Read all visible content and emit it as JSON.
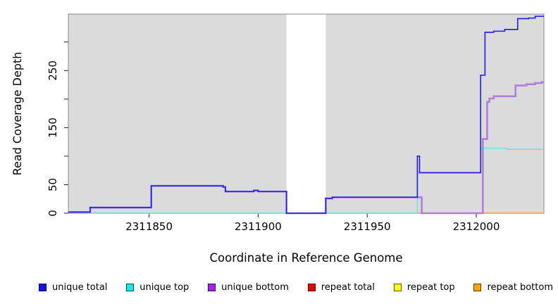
{
  "chart_data": {
    "type": "line",
    "subtype": "step-coverage",
    "title": "",
    "xlabel": "Coordinate in Reference Genome",
    "ylabel": "Read Coverage Depth",
    "xlim": [
      2311813,
      2312031
    ],
    "ylim": [
      0,
      349
    ],
    "grid": false,
    "plot_bg": "#DBDBDB",
    "box_color": "#8a8a8a",
    "x_ticks": [
      {
        "value": 2311850,
        "label": "2311850"
      },
      {
        "value": 2311900,
        "label": "2311900"
      },
      {
        "value": 2311950,
        "label": "2311950"
      },
      {
        "value": 2312000,
        "label": "2312000"
      }
    ],
    "y_ticks": [
      {
        "value": 0,
        "label": "0"
      },
      {
        "value": 50,
        "label": "50"
      },
      {
        "value": 100,
        "label": ""
      },
      {
        "value": 150,
        "label": "150"
      },
      {
        "value": 200,
        "label": ""
      },
      {
        "value": 250,
        "label": "250"
      },
      {
        "value": 300,
        "label": ""
      }
    ],
    "masked_region": {
      "x1": 2311913,
      "x2": 2311931,
      "color": "#FFFFFF"
    },
    "series": [
      {
        "name": "unique total",
        "color": "#2626EE",
        "width": 1.7,
        "draw": true,
        "points": [
          [
            2311813,
            2
          ],
          [
            2311823,
            10
          ],
          [
            2311851,
            48
          ],
          [
            2311884,
            46
          ],
          [
            2311885,
            38
          ],
          [
            2311898,
            40
          ],
          [
            2311900,
            38
          ],
          [
            2311913,
            0
          ],
          [
            2311931,
            26
          ],
          [
            2311934,
            28
          ],
          [
            2311973,
            100
          ],
          [
            2311974,
            71
          ],
          [
            2312002,
            242
          ],
          [
            2312004,
            317
          ],
          [
            2312008,
            319
          ],
          [
            2312013,
            322
          ],
          [
            2312019,
            341
          ],
          [
            2312024,
            342
          ],
          [
            2312027,
            345
          ],
          [
            2312031,
            345
          ]
        ]
      },
      {
        "name": "unique top",
        "color": "#5CE4E8",
        "width": 1.4,
        "draw": true,
        "points": [
          [
            2311813,
            0
          ],
          [
            2311973,
            70
          ],
          [
            2312002,
            114
          ],
          [
            2312014,
            112
          ],
          [
            2312031,
            112
          ]
        ]
      },
      {
        "name": "unique bottom",
        "color": "#B27EDE",
        "width": 2.6,
        "draw": true,
        "points": [
          [
            2311813,
            2
          ],
          [
            2311823,
            10
          ],
          [
            2311851,
            48
          ],
          [
            2311884,
            46
          ],
          [
            2311885,
            38
          ],
          [
            2311898,
            40
          ],
          [
            2311900,
            38
          ],
          [
            2311913,
            0
          ],
          [
            2311931,
            26
          ],
          [
            2311934,
            28
          ],
          [
            2311975,
            0
          ],
          [
            2312003,
            130
          ],
          [
            2312005,
            195
          ],
          [
            2312006,
            201
          ],
          [
            2312008,
            205
          ],
          [
            2312018,
            224
          ],
          [
            2312023,
            226
          ],
          [
            2312027,
            228
          ],
          [
            2312030,
            230
          ],
          [
            2312031,
            230
          ]
        ]
      },
      {
        "name": "repeat total",
        "color": "#D0527A",
        "width": 1.4,
        "draw": false,
        "points": [
          [
            2311813,
            0
          ],
          [
            2312031,
            0
          ]
        ]
      },
      {
        "name": "repeat top",
        "color": "#FFFF00",
        "width": 1.4,
        "draw": false,
        "points": [
          [
            2311813,
            0
          ],
          [
            2312031,
            0
          ]
        ]
      },
      {
        "name": "repeat bottom",
        "color": "#FF9B26",
        "width": 1.4,
        "draw": false,
        "points": [
          [
            2311813,
            0
          ],
          [
            2312031,
            0
          ]
        ]
      }
    ],
    "baseline_segments": [
      {
        "x1": 2311813,
        "x2": 2311973,
        "color": "#8FD98F"
      },
      {
        "x1": 2311973,
        "x2": 2311975,
        "color": "#FF9B26"
      },
      {
        "x1": 2311975,
        "x2": 2312000,
        "color": "#D0527A"
      },
      {
        "x1": 2312000,
        "x2": 2312031,
        "color": "#FF9B26"
      }
    ],
    "legend": [
      {
        "label": "unique total",
        "color": "#1414EE"
      },
      {
        "label": "unique top",
        "color": "#00EEEE"
      },
      {
        "label": "unique bottom",
        "color": "#A021F0"
      },
      {
        "label": "repeat total",
        "color": "#EE0000"
      },
      {
        "label": "repeat top",
        "color": "#FFFF00"
      },
      {
        "label": "repeat bottom",
        "color": "#FFA500"
      }
    ]
  }
}
